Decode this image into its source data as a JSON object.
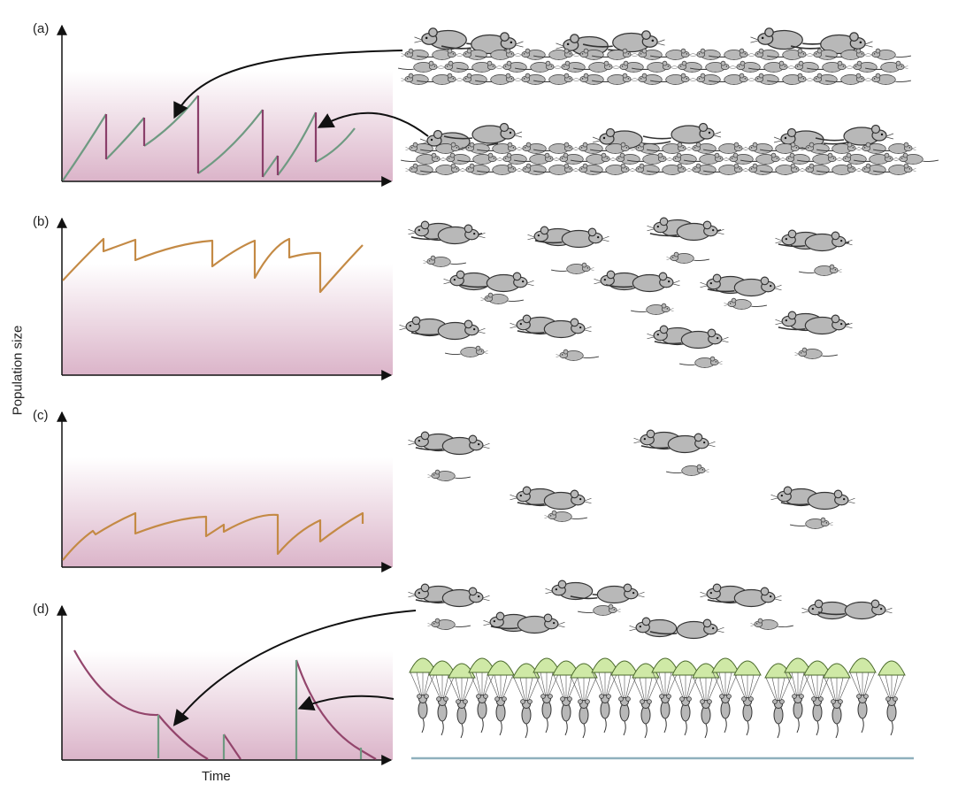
{
  "figure": {
    "y_axis_label": "Population size",
    "x_axis_label": "Time",
    "panels": [
      {
        "label": "(a)",
        "curve_color": "#6f9a82",
        "drop_color": "#8a3f6a"
      },
      {
        "label": "(b)",
        "curve_color": "#c48a45"
      },
      {
        "label": "(c)",
        "curve_color": "#c48a45"
      },
      {
        "label": "(d)",
        "curve_color": "#93456c",
        "jump_color": "#6f9a82"
      }
    ],
    "illustrations": [
      {
        "panel": "(a)",
        "content": "dense crowd of mice with many young"
      },
      {
        "panel": "(b)",
        "content": "moderate groups of mice"
      },
      {
        "panel": "(c)",
        "content": "sparse groups of mice"
      },
      {
        "panel": "(d)",
        "content": "few mice and mice parachuting in"
      }
    ],
    "colors": {
      "mouse_fill": "#b8b8b8",
      "mouse_stroke": "#333333",
      "parachute": "#cfe9a6",
      "ground_line": "#8fb0bd"
    },
    "icons": [
      "mouse-icon",
      "parachute-icon",
      "curved-arrow-icon"
    ]
  }
}
